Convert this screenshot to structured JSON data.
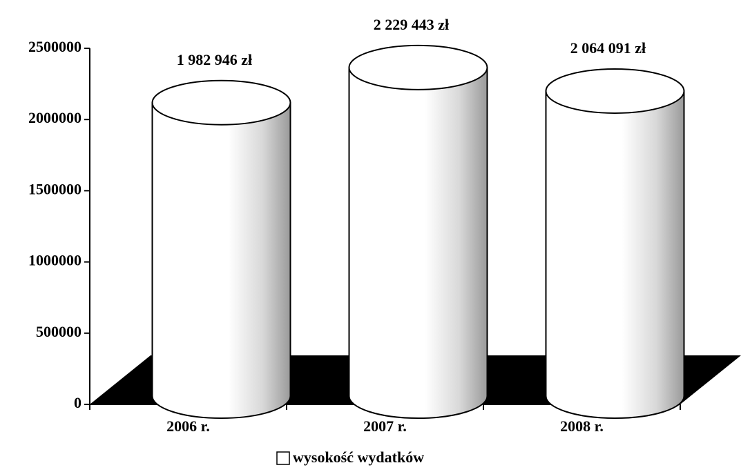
{
  "chart_data": {
    "type": "cylinder",
    "categories": [
      "2006 r.",
      "2007 r.",
      "2008 r."
    ],
    "series": [
      {
        "name": "wysokość wydatków",
        "color": "#ffffff",
        "values": [
          1982946,
          2229443,
          2064091
        ],
        "value_labels": [
          "1 982 946 zł",
          "2 229 443 zł",
          "2 064 091 zł"
        ]
      }
    ],
    "ylim": [
      0,
      2500000
    ],
    "yticks": [
      0,
      500000,
      1000000,
      1500000,
      2000000,
      2500000
    ],
    "legend": "bottom",
    "floor_color": "#000000"
  }
}
